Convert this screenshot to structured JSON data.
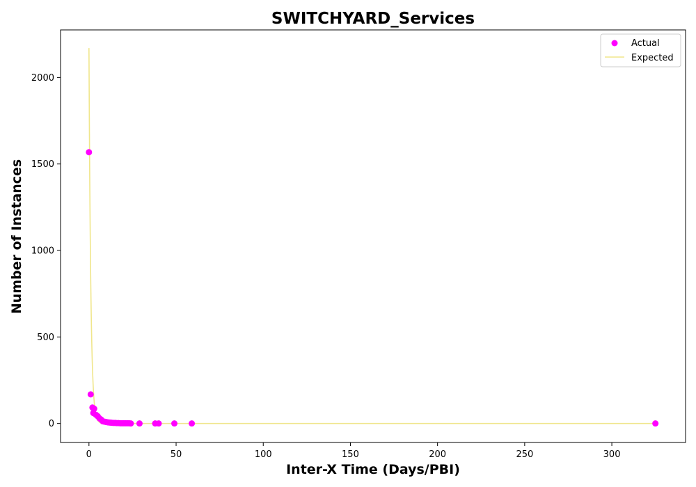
{
  "chart_data": {
    "type": "scatter",
    "title": "SWITCHYARD_Services",
    "xlabel": "Inter-X Time (Days/PBI)",
    "ylabel": "Number of Instances",
    "xlim": [
      -16.3,
      342.3
    ],
    "ylim": [
      -110,
      2275
    ],
    "xticks": [
      0,
      50,
      100,
      150,
      200,
      250,
      300
    ],
    "yticks": [
      0,
      500,
      1000,
      1500,
      2000
    ],
    "grid": false,
    "legend_position": "top-right",
    "series": [
      {
        "name": "Actual",
        "kind": "scatter",
        "color": "#ff00ff",
        "points": [
          [
            0,
            1568
          ],
          [
            1,
            168
          ],
          [
            2,
            92
          ],
          [
            3,
            85
          ],
          [
            2.5,
            60
          ],
          [
            4,
            50
          ],
          [
            5,
            42
          ],
          [
            6,
            30
          ],
          [
            7,
            22
          ],
          [
            8,
            12
          ],
          [
            9,
            10
          ],
          [
            10,
            8
          ],
          [
            11,
            6
          ],
          [
            12,
            5
          ],
          [
            13,
            4
          ],
          [
            14,
            3
          ],
          [
            15,
            3
          ],
          [
            16,
            2
          ],
          [
            17,
            2
          ],
          [
            18,
            1
          ],
          [
            19,
            1
          ],
          [
            20,
            1
          ],
          [
            21,
            1
          ],
          [
            22,
            1
          ],
          [
            23,
            1
          ],
          [
            24,
            0
          ],
          [
            29,
            0
          ],
          [
            38,
            0
          ],
          [
            40,
            0
          ],
          [
            49,
            0
          ],
          [
            59,
            0
          ],
          [
            325,
            0
          ]
        ]
      },
      {
        "name": "Expected",
        "kind": "line",
        "color": "#f0e68c",
        "model": {
          "type": "exponential",
          "a": 2170,
          "k": 0.95,
          "x_max": 325
        }
      }
    ]
  }
}
